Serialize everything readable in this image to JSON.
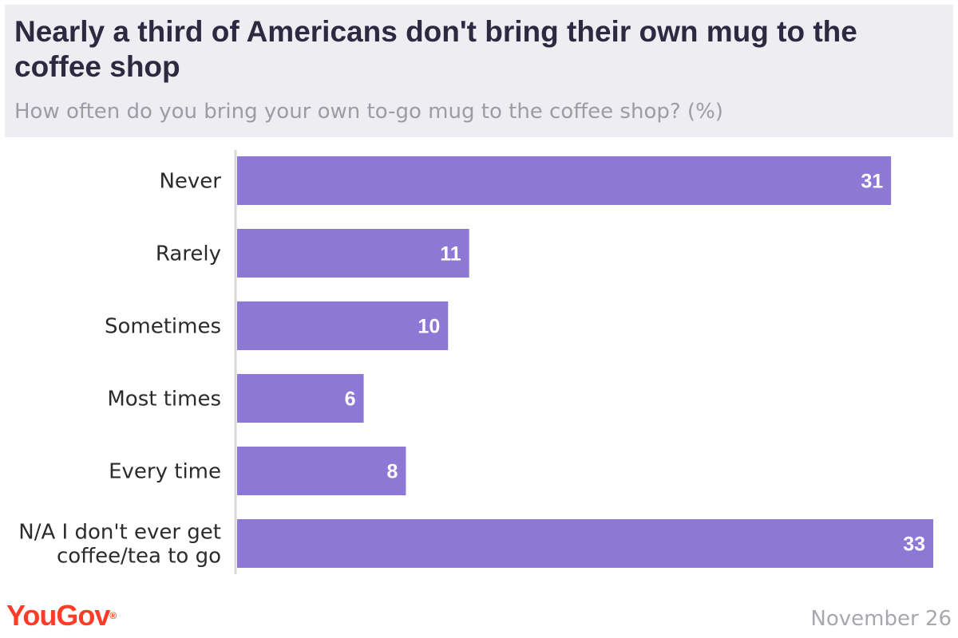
{
  "chart_data": {
    "type": "bar",
    "orientation": "horizontal",
    "title": "Nearly a third of Americans don't bring their own mug to the coffee shop",
    "subtitle": "How often do you bring your own to-go mug to the coffee shop? (%)",
    "categories": [
      [
        "Never"
      ],
      [
        "Rarely"
      ],
      [
        "Sometimes"
      ],
      [
        "Most times"
      ],
      [
        "Every time"
      ],
      [
        "N/A I don't ever get",
        "coffee/tea to go"
      ]
    ],
    "values": [
      31,
      11,
      10,
      6,
      8,
      33
    ],
    "data_labels": [
      "31",
      "11",
      "10",
      "6",
      "8",
      "33"
    ],
    "xlim": [
      0,
      33
    ],
    "grid": false,
    "legend": "none",
    "bar_color": "#8e78d6"
  },
  "branding": {
    "logo_text": "YouGov",
    "date": "November 26"
  },
  "colors": {
    "header_bg": "#eeedf2",
    "title": "#2d2941",
    "subtitle": "#9d9ba5",
    "logo": "#ff3c28",
    "axis": "#d9d8dc"
  }
}
